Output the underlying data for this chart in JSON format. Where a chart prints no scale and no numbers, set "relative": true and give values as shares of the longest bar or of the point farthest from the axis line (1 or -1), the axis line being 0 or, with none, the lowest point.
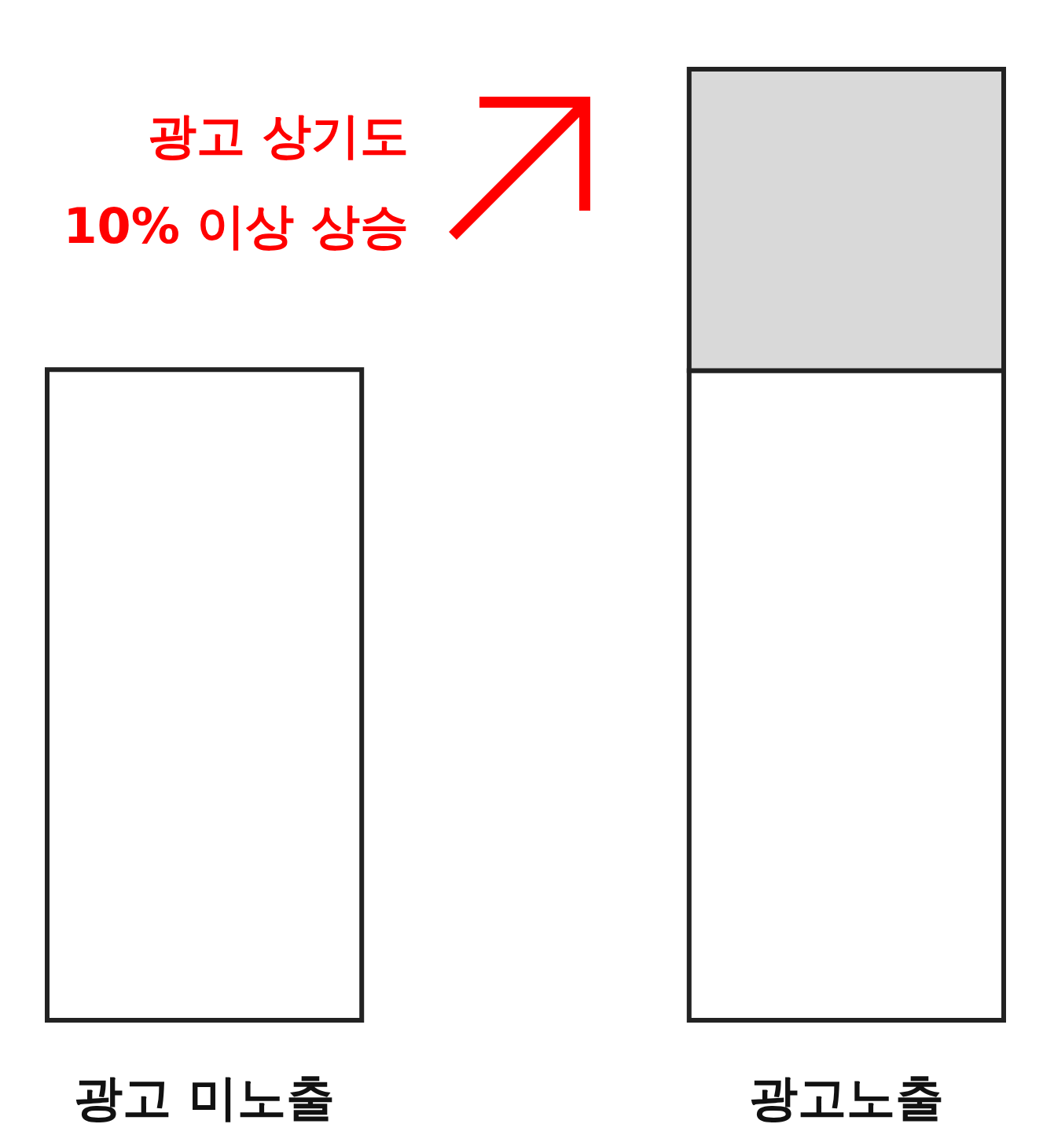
{
  "chart_data": {
    "type": "bar",
    "relative": true,
    "stacked": true,
    "categories": [
      "광고 미노출",
      "광고노출"
    ],
    "series": [
      {
        "color": "#ffffff",
        "values": [
          0.684,
          0.683
        ]
      },
      {
        "color": "#d9d9d9",
        "values": [
          null,
          0.317
        ]
      }
    ],
    "annotations": [
      "광고 상기도",
      "10% 이상 상승"
    ]
  }
}
